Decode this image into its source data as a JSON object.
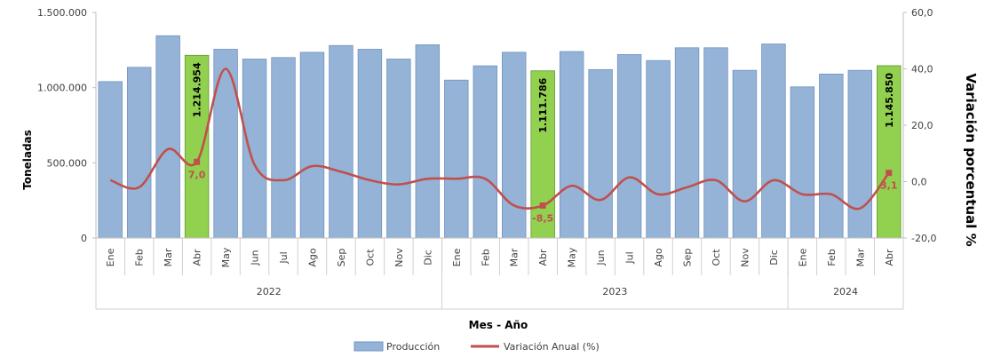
{
  "chart_data": {
    "type": "bar",
    "categories": [
      "Ene",
      "Feb",
      "Mar",
      "Abr",
      "May",
      "Jun",
      "Jul",
      "Ago",
      "Sep",
      "Oct",
      "Nov",
      "Dic",
      "Ene",
      "Feb",
      "Mar",
      "Abr",
      "May",
      "Jun",
      "Jul",
      "Ago",
      "Sep",
      "Oct",
      "Nov",
      "Dic",
      "Ene",
      "Feb",
      "Mar",
      "Abr"
    ],
    "years": [
      {
        "label": "2022",
        "count": 12
      },
      {
        "label": "2023",
        "count": 12
      },
      {
        "label": "2024",
        "count": 4
      }
    ],
    "series": [
      {
        "name": "Producción",
        "type": "bar",
        "axis": "left",
        "color": "#95b3d7",
        "highlight_color": "#92d050",
        "highlight_indices": [
          3,
          15,
          27
        ],
        "values": [
          1040000,
          1135000,
          1345000,
          1214954,
          1255000,
          1190000,
          1200000,
          1235000,
          1280000,
          1255000,
          1190000,
          1285000,
          1050000,
          1145000,
          1235000,
          1111786,
          1240000,
          1120000,
          1220000,
          1180000,
          1265000,
          1265000,
          1115000,
          1290000,
          1005000,
          1090000,
          1115000,
          1145850
        ]
      },
      {
        "name": "Variación Anual (%)",
        "type": "line",
        "axis": "right",
        "color": "#c0504d",
        "values": [
          0.5,
          -2.0,
          11.5,
          7.0,
          40.0,
          6.0,
          0.5,
          5.5,
          3.5,
          0.5,
          -1.0,
          1.0,
          1.0,
          1.0,
          -8.5,
          -8.5,
          -1.5,
          -6.5,
          1.5,
          -4.5,
          -2.0,
          0.5,
          -7.0,
          0.5,
          -4.5,
          -4.5,
          -9.5,
          3.1
        ]
      }
    ],
    "bar_labels": [
      {
        "index": 3,
        "text": "1.214.954"
      },
      {
        "index": 15,
        "text": "1.111.786"
      },
      {
        "index": 27,
        "text": "1.145.850"
      }
    ],
    "line_labels": [
      {
        "index": 3,
        "text": "7,0"
      },
      {
        "index": 15,
        "text": "-8,5"
      },
      {
        "index": 27,
        "text": "3,1"
      }
    ],
    "ylabel": "Toneladas",
    "y2label": "Variación porcentual %",
    "xlabel": "Mes - Año",
    "ylim": [
      0,
      1500000
    ],
    "y_ticks": [
      0,
      500000,
      1000000,
      1500000
    ],
    "y_tick_labels": [
      "0",
      "500.000",
      "1.000.000",
      "1.500.000"
    ],
    "y2lim": [
      -20,
      60
    ],
    "y2_ticks": [
      -20,
      0,
      20,
      40,
      60
    ],
    "y2_tick_labels": [
      "-20,0",
      "0,0",
      "20,0",
      "40,0",
      "60,0"
    ],
    "grid": false,
    "legend_position": "bottom"
  }
}
